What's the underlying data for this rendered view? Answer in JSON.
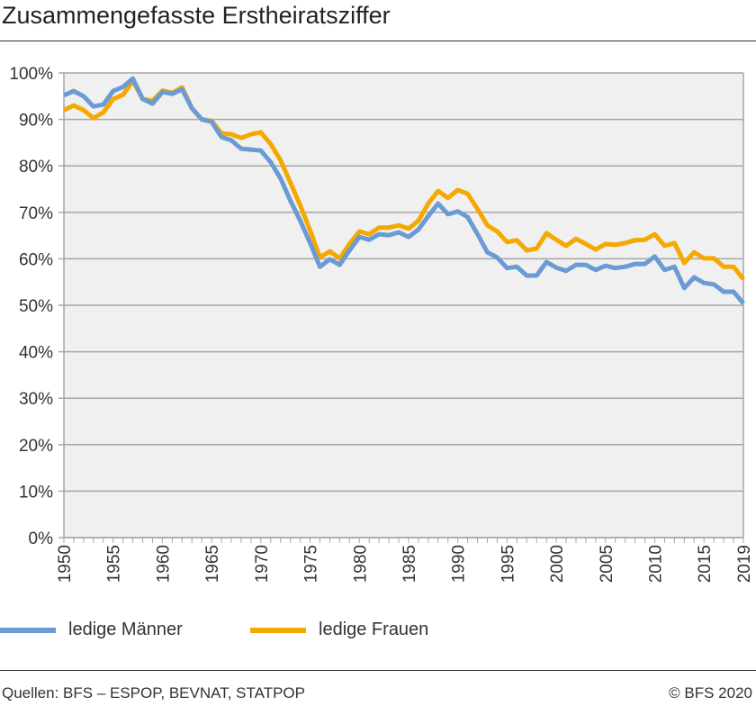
{
  "title": "Zusammengefasste Erstheiratsziffer",
  "source": "Quellen: BFS – ESPOP, BEVNAT, STATPOP",
  "copyright": "© BFS 2020",
  "chart_data": {
    "type": "line",
    "title": "Zusammengefasste Erstheiratsziffer",
    "xlabel": "",
    "ylabel": "",
    "xlim": [
      1950,
      2019
    ],
    "ylim": [
      0,
      100
    ],
    "y_unit": "%",
    "grid": true,
    "legend": "bottom",
    "y_ticks": [
      "0%",
      "10%",
      "20%",
      "30%",
      "40%",
      "50%",
      "60%",
      "70%",
      "80%",
      "90%",
      "100%"
    ],
    "x_ticks": [
      "1950",
      "1955",
      "1960",
      "1965",
      "1970",
      "1975",
      "1980",
      "1985",
      "1990",
      "1995",
      "2000",
      "2005",
      "2010",
      "2015",
      "2019"
    ],
    "x": [
      1950,
      1951,
      1952,
      1953,
      1954,
      1955,
      1956,
      1957,
      1958,
      1959,
      1960,
      1961,
      1962,
      1963,
      1964,
      1965,
      1966,
      1967,
      1968,
      1969,
      1970,
      1971,
      1972,
      1973,
      1974,
      1975,
      1976,
      1977,
      1978,
      1979,
      1980,
      1981,
      1982,
      1983,
      1984,
      1985,
      1986,
      1987,
      1988,
      1989,
      1990,
      1991,
      1992,
      1993,
      1994,
      1995,
      1996,
      1997,
      1998,
      1999,
      2000,
      2001,
      2002,
      2003,
      2004,
      2005,
      2006,
      2007,
      2008,
      2009,
      2010,
      2011,
      2012,
      2013,
      2014,
      2015,
      2016,
      2017,
      2018,
      2019
    ],
    "series": [
      {
        "name": "ledige Männer",
        "color": "#6a9bd4",
        "values": [
          95.2,
          96.1,
          95,
          92.8,
          93.2,
          96.1,
          97,
          98.8,
          94.4,
          93.4,
          95.9,
          95.5,
          96.5,
          92.4,
          90,
          89.5,
          86.2,
          85.5,
          83.7,
          83.5,
          83.3,
          80.8,
          77.3,
          72.5,
          68.2,
          63.4,
          58.3,
          59.9,
          58.7,
          61.8,
          64.7,
          64.1,
          65.3,
          65.1,
          65.7,
          64.7,
          66.3,
          69.2,
          71.9,
          69.6,
          70.2,
          69,
          65.3,
          61.4,
          60.3,
          58,
          58.3,
          56.4,
          56.4,
          59.3,
          58.1,
          57.4,
          58.7,
          58.7,
          57.6,
          58.5,
          58,
          58.3,
          58.9,
          58.9,
          60.5,
          57.6,
          58.3,
          53.7,
          56,
          54.8,
          54.5,
          52.9,
          52.9,
          50.4
        ]
      },
      {
        "name": "ledige Frauen",
        "color": "#f5a800",
        "values": [
          92,
          93,
          92,
          90.3,
          91.5,
          94.4,
          95.3,
          98.3,
          94.4,
          94,
          96.2,
          95.7,
          96.9,
          92.4,
          90,
          89.7,
          87,
          86.8,
          86,
          86.8,
          87.2,
          84.7,
          81.2,
          76.4,
          71.5,
          66.1,
          60.3,
          61.6,
          60.1,
          63.2,
          65.9,
          65.3,
          66.7,
          66.7,
          67.2,
          66.5,
          68.2,
          71.9,
          74.6,
          73.1,
          74.8,
          74,
          70.7,
          67.2,
          65.9,
          63.6,
          64,
          61.8,
          62.2,
          65.5,
          64.1,
          62.8,
          64.3,
          63.2,
          62,
          63.2,
          63,
          63.4,
          64,
          64.1,
          65.3,
          62.8,
          63.4,
          59.1,
          61.4,
          60.1,
          60.1,
          58.3,
          58.3,
          55.6
        ]
      }
    ]
  }
}
